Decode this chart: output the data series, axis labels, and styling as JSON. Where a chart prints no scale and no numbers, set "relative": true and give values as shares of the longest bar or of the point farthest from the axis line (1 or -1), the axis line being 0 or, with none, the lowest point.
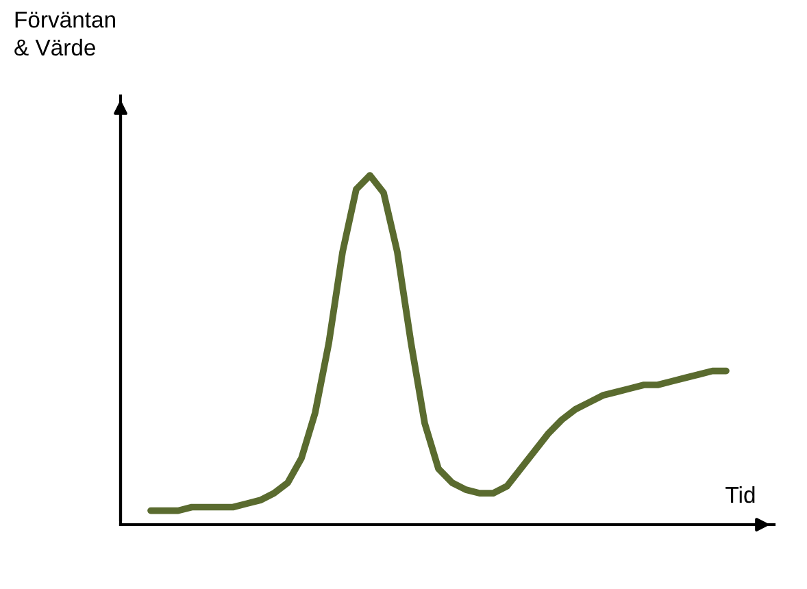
{
  "chart_data": {
    "type": "line",
    "relative": true,
    "xlabel": "Tid",
    "annotations": [
      "Förväntan\n& Värde"
    ],
    "categories": [
      null,
      null,
      null,
      null,
      null,
      null,
      null,
      null,
      null,
      null,
      null,
      null,
      null,
      null,
      null,
      null,
      null,
      null,
      null,
      null,
      null,
      null,
      null,
      null,
      null,
      null,
      null,
      null,
      null,
      null,
      null,
      null,
      null,
      null,
      null,
      null,
      null,
      null,
      null,
      null,
      null,
      null,
      null
    ],
    "series": [
      {
        "color": "#5a6b2f",
        "values": [
          0.04,
          0.04,
          0.04,
          0.05,
          0.05,
          0.05,
          0.05,
          0.06,
          0.07,
          0.09,
          0.12,
          0.19,
          0.32,
          0.52,
          0.78,
          0.96,
          1,
          0.95,
          0.78,
          0.52,
          0.29,
          0.16,
          0.12,
          0.1,
          0.09,
          0.09,
          0.11,
          0.16,
          0.21,
          0.26,
          0.3,
          0.33,
          0.35,
          0.37,
          0.38,
          0.39,
          0.4,
          0.4,
          0.41,
          0.42,
          0.43,
          0.44,
          0.44
        ]
      }
    ],
    "legend": false,
    "marker": "none",
    "line_style": "solid"
  }
}
